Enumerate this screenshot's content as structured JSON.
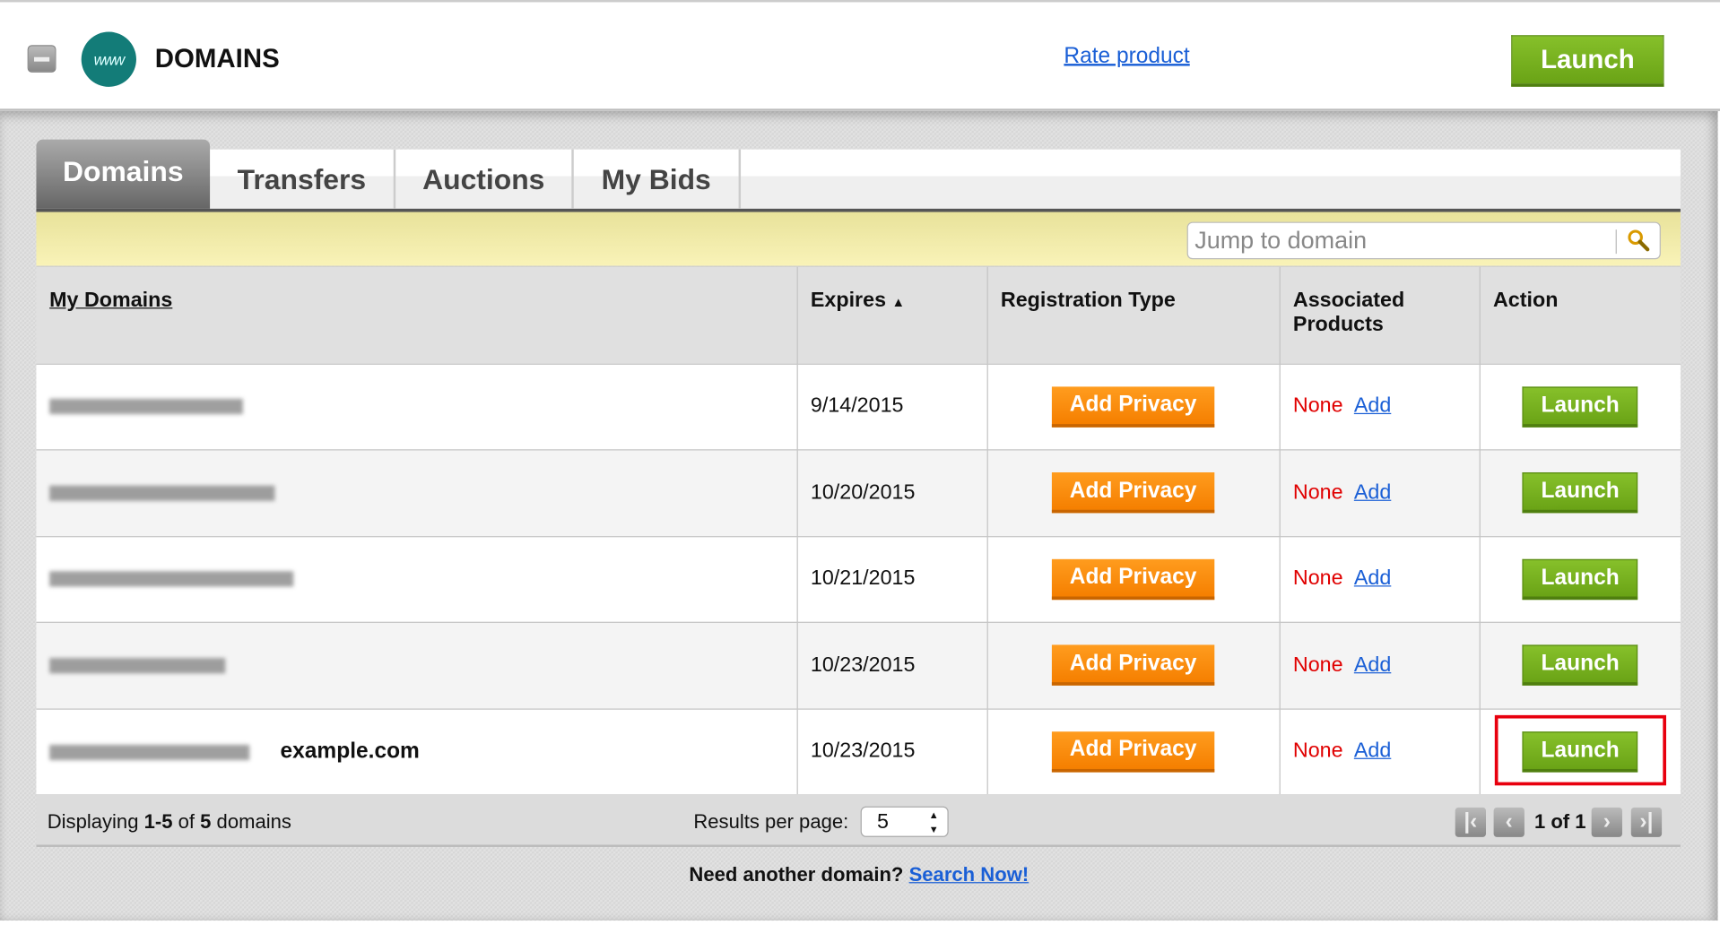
{
  "header": {
    "title": "DOMAINS",
    "logo_text": "www",
    "rate_link": "Rate product",
    "launch_label": "Launch"
  },
  "tabs": [
    {
      "label": "Domains",
      "active": true
    },
    {
      "label": "Transfers"
    },
    {
      "label": "Auctions"
    },
    {
      "label": "My Bids"
    }
  ],
  "search": {
    "placeholder": "Jump to domain"
  },
  "table": {
    "columns": [
      "My Domains",
      "Expires",
      "Registration Type",
      "Associated Products",
      "Action"
    ],
    "rows": [
      {
        "domain_note": "",
        "expires": "9/14/2015",
        "reg": "Add Privacy",
        "assoc": "None",
        "assoc_link": "Add",
        "action": "Launch"
      },
      {
        "domain_note": "",
        "expires": "10/20/2015",
        "reg": "Add Privacy",
        "assoc": "None",
        "assoc_link": "Add",
        "action": "Launch"
      },
      {
        "domain_note": "",
        "expires": "10/21/2015",
        "reg": "Add Privacy",
        "assoc": "None",
        "assoc_link": "Add",
        "action": "Launch"
      },
      {
        "domain_note": "",
        "expires": "10/23/2015",
        "reg": "Add Privacy",
        "assoc": "None",
        "assoc_link": "Add",
        "action": "Launch"
      },
      {
        "domain_note": "example.com",
        "expires": "10/23/2015",
        "reg": "Add Privacy",
        "assoc": "None",
        "assoc_link": "Add",
        "action": "Launch",
        "highlighted": true
      }
    ]
  },
  "footer": {
    "displaying_pre": "Displaying ",
    "range": "1-5",
    "of": " of ",
    "total": "5",
    "suffix": " domains",
    "rpp_label": "Results per page:",
    "rpp_value": "5",
    "page_text": "1 of 1"
  },
  "bottom": {
    "text": "Need another domain?",
    "link": "Search Now!"
  },
  "colors": {
    "green": "#7ab51d",
    "orange": "#f68b0f",
    "link": "#1a5fd6",
    "highlight": "#e8000e"
  }
}
